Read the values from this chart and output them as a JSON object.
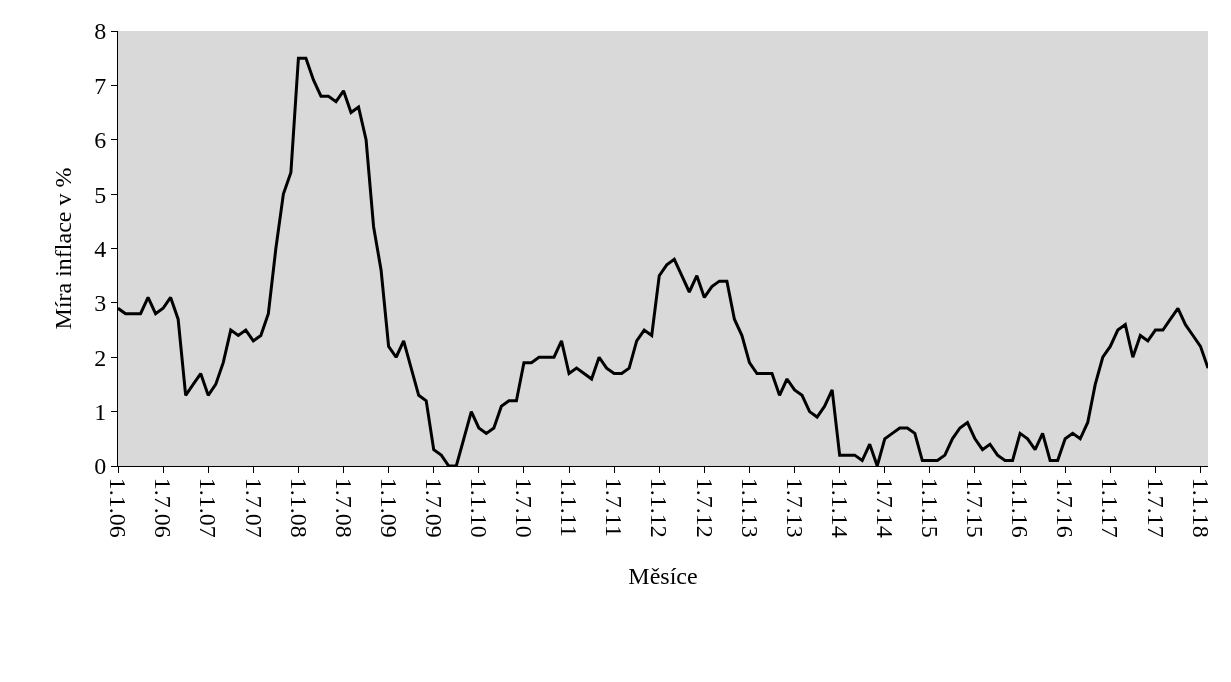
{
  "chart_data": {
    "type": "line",
    "xlabel": "Měsíce",
    "ylabel": "Míra inflace v %",
    "categories": [
      "1.1.06",
      null,
      null,
      null,
      null,
      null,
      "1.7.06",
      null,
      null,
      null,
      null,
      null,
      "1.1.07",
      null,
      null,
      null,
      null,
      null,
      "1.7.07",
      null,
      null,
      null,
      null,
      null,
      "1.1.08",
      null,
      null,
      null,
      null,
      null,
      "1.7.08",
      null,
      null,
      null,
      null,
      null,
      "1.1.09",
      null,
      null,
      null,
      null,
      null,
      "1.7.09",
      null,
      null,
      null,
      null,
      null,
      "1.1.10",
      null,
      null,
      null,
      null,
      null,
      "1.7.10",
      null,
      null,
      null,
      null,
      null,
      "1.1.11",
      null,
      null,
      null,
      null,
      null,
      "1.7.11",
      null,
      null,
      null,
      null,
      null,
      "1.1.12",
      null,
      null,
      null,
      null,
      null,
      "1.7.12",
      null,
      null,
      null,
      null,
      null,
      "1.1.13",
      null,
      null,
      null,
      null,
      null,
      "1.7.13",
      null,
      null,
      null,
      null,
      null,
      "1.1.14",
      null,
      null,
      null,
      null,
      null,
      "1.7.14",
      null,
      null,
      null,
      null,
      null,
      "1.1.15",
      null,
      null,
      null,
      null,
      null,
      "1.7.15",
      null,
      null,
      null,
      null,
      null,
      "1.1.16",
      null,
      null,
      null,
      null,
      null,
      "1.7.16",
      null,
      null,
      null,
      null,
      null,
      "1.1.17",
      null,
      null,
      null,
      null,
      null,
      "1.7.17",
      null,
      null,
      null,
      null,
      null,
      "1.1.18",
      null
    ],
    "series": [
      {
        "color": "#000000",
        "values": [
          2.9,
          2.8,
          2.8,
          2.8,
          3.1,
          2.8,
          2.9,
          3.1,
          2.7,
          1.3,
          1.5,
          1.7,
          1.3,
          1.5,
          1.9,
          2.5,
          2.4,
          2.5,
          2.3,
          2.4,
          2.8,
          4.0,
          5.0,
          5.4,
          7.5,
          7.5,
          7.1,
          6.8,
          6.8,
          6.7,
          6.9,
          6.5,
          6.6,
          6.0,
          4.4,
          3.6,
          2.2,
          2.0,
          2.3,
          1.8,
          1.3,
          1.2,
          0.3,
          0.2,
          0.0,
          0.0,
          0.5,
          1.0,
          0.7,
          0.6,
          0.7,
          1.1,
          1.2,
          1.2,
          1.9,
          1.9,
          2.0,
          2.0,
          2.0,
          2.3,
          1.7,
          1.8,
          1.7,
          1.6,
          2.0,
          1.8,
          1.7,
          1.7,
          1.8,
          2.3,
          2.5,
          2.4,
          3.5,
          3.7,
          3.8,
          3.5,
          3.2,
          3.5,
          3.1,
          3.3,
          3.4,
          3.4,
          2.7,
          2.4,
          1.9,
          1.7,
          1.7,
          1.7,
          1.3,
          1.6,
          1.4,
          1.3,
          1.0,
          0.9,
          1.1,
          1.4,
          0.2,
          0.2,
          0.2,
          0.1,
          0.4,
          0.0,
          0.5,
          0.6,
          0.7,
          0.7,
          0.6,
          0.1,
          0.1,
          0.1,
          0.2,
          0.5,
          0.7,
          0.8,
          0.5,
          0.3,
          0.4,
          0.2,
          0.1,
          0.1,
          0.6,
          0.5,
          0.3,
          0.6,
          0.1,
          0.1,
          0.5,
          0.6,
          0.5,
          0.8,
          1.5,
          2.0,
          2.2,
          2.5,
          2.6,
          2.0,
          2.4,
          2.3,
          2.5,
          2.5,
          2.7,
          2.9,
          2.6,
          2.4,
          2.2,
          1.8
        ]
      }
    ],
    "ylim": [
      0,
      8
    ],
    "yticks": [
      0,
      1,
      2,
      3,
      4,
      5,
      6,
      7,
      8
    ],
    "grid": false,
    "legend": false,
    "marker": "none",
    "line_style": "solid"
  }
}
